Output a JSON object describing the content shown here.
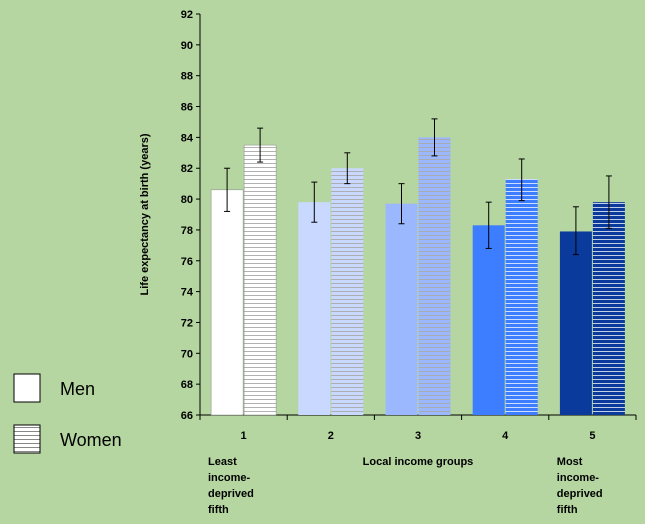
{
  "chart_data": {
    "type": "bar",
    "categories": [
      "1",
      "2",
      "3",
      "4",
      "5"
    ],
    "series": [
      {
        "name": "Men",
        "values": [
          80.6,
          79.8,
          79.7,
          78.3,
          77.9
        ],
        "err_low": [
          79.2,
          78.5,
          78.4,
          76.8,
          76.4
        ],
        "err_high": [
          82.0,
          81.1,
          81.0,
          79.8,
          79.5
        ]
      },
      {
        "name": "Women",
        "values": [
          83.5,
          82.0,
          84.0,
          81.3,
          79.8
        ],
        "err_low": [
          82.4,
          81.0,
          82.8,
          79.9,
          78.1
        ],
        "err_high": [
          84.6,
          83.0,
          85.2,
          82.6,
          81.5
        ]
      }
    ],
    "ylabel": "Life expectancy at birth (years)",
    "xlabel": "Local income groups",
    "ylim": [
      66,
      92
    ],
    "yticks": [
      "66",
      "68",
      "70",
      "72",
      "74",
      "76",
      "78",
      "80",
      "82",
      "84",
      "86",
      "88",
      "90",
      "92"
    ],
    "category_notes": [
      {
        "category": "1",
        "lines": [
          "Least",
          "income-",
          "deprived",
          "fifth"
        ]
      },
      {
        "category": "5",
        "lines": [
          "Most",
          "income-",
          "deprived",
          "fifth"
        ]
      }
    ],
    "colors": {
      "background": "#b5d6a0",
      "men": [
        "#ffffff",
        "#c8d8ff",
        "#9bb8ff",
        "#3d7dff",
        "#0a3a9c"
      ],
      "women": [
        "#ffffff",
        "#c8d8ff",
        "#9bb8ff",
        "#3d7dff",
        "#0a3a9c"
      ]
    },
    "legend": {
      "position": "left",
      "items": [
        "Men",
        "Women"
      ]
    }
  }
}
